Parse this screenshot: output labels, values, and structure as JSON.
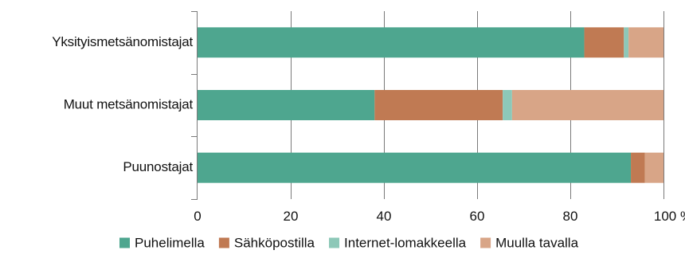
{
  "chart_data": {
    "type": "bar",
    "orientation": "horizontal",
    "stacked": true,
    "categories": [
      "Yksityismetsänomistajat",
      "Muut metsänomistajat",
      "Puunostajat"
    ],
    "series": [
      {
        "name": "Puhelimella",
        "values": [
          83,
          38,
          93
        ],
        "color": "#4ea68f"
      },
      {
        "name": "Sähköpostilla",
        "values": [
          8.5,
          27.5,
          3
        ],
        "color": "#c07a53"
      },
      {
        "name": "Internet-lomakkeella",
        "values": [
          1,
          2,
          0
        ],
        "color": "#8dc8b8"
      },
      {
        "name": "Muulla tavalla",
        "values": [
          7.5,
          32.5,
          4
        ],
        "color": "#d8a587"
      }
    ],
    "xlim": [
      0,
      100
    ],
    "xticks": [
      "0",
      "20",
      "40",
      "60",
      "80",
      "100"
    ],
    "xunit": "%",
    "grid": true,
    "legend": "bottom"
  }
}
